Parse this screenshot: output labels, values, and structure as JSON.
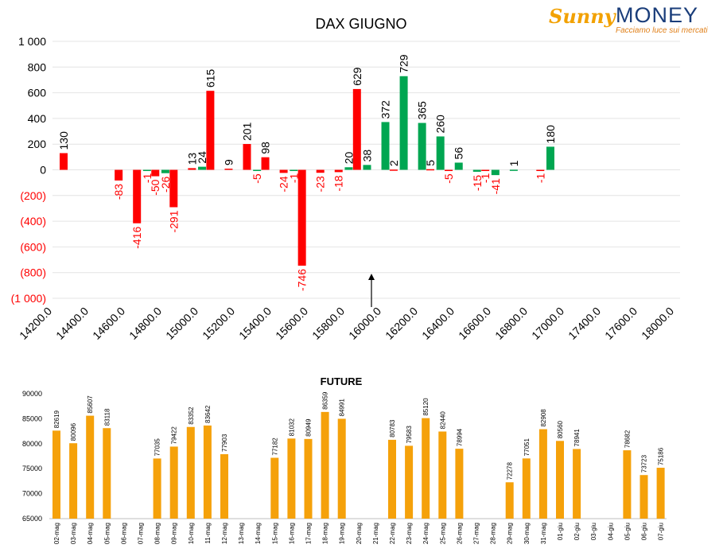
{
  "brand": {
    "name_part1": "Sunny",
    "name_part2": "MONEY",
    "tagline": "Facciamo luce sui mercati"
  },
  "colors": {
    "positive": "#00a651",
    "negative": "#ff0000",
    "future": "#f5a10a",
    "grid": "#e4e4e4",
    "axis_text": "#000000"
  },
  "chart_data": [
    {
      "type": "bar",
      "title": "DAX GIUGNO",
      "categories": [
        "14200.0",
        "14250.0",
        "14300.0",
        "14350.0",
        "14400.0",
        "14450.0",
        "14500.0",
        "14550.0",
        "14600.0",
        "14650.0",
        "14700.0",
        "14750.0",
        "14800.0",
        "14850.0",
        "14900.0",
        "14950.0",
        "15000.0",
        "15050.0",
        "15100.0",
        "15150.0",
        "15200.0",
        "15250.0",
        "15300.0",
        "15350.0",
        "15400.0",
        "15450.0",
        "15500.0",
        "15550.0",
        "15600.0",
        "15650.0",
        "15700.0",
        "15750.0",
        "15800.0",
        "15850.0",
        "15900.0",
        "15950.0",
        "16000.0",
        "16050.0",
        "16100.0",
        "16150.0",
        "16200.0",
        "16250.0",
        "16300.0",
        "16350.0",
        "16400.0",
        "16450.0",
        "16500.0",
        "16550.0",
        "16600.0",
        "16650.0",
        "16700.0",
        "16750.0",
        "16800.0",
        "16850.0",
        "16900.0",
        "16950.0",
        "17000.0",
        "17200.0",
        "17400.0",
        "17600.0",
        "17800.0",
        "18000.0"
      ],
      "tick_labels": [
        "14200.0",
        "14400.0",
        "14600.0",
        "14800.0",
        "15000.0",
        "15200.0",
        "15400.0",
        "15600.0",
        "15800.0",
        "16000.0",
        "16200.0",
        "16400.0",
        "16600.0",
        "16800.0",
        "17000.0",
        "17400.0",
        "17600.0",
        "18000.0"
      ],
      "tick_indices": [
        0,
        4,
        8,
        12,
        16,
        20,
        24,
        28,
        32,
        36,
        40,
        44,
        48,
        52,
        56,
        58,
        59,
        61
      ],
      "series": [
        {
          "name": "",
          "color_key": "negative",
          "values": [
            130,
            null,
            null,
            null,
            null,
            null,
            -83,
            -416,
            -50,
            -291,
            13,
            615,
            9,
            201,
            -5,
            98,
            -24,
            -746,
            -23,
            -18,
            629,
            2,
            null,
            5,
            -5,
            null,
            -15,
            null,
            null,
            -1,
            null,
            null,
            null,
            null,
            null,
            null,
            null,
            null,
            null,
            null,
            null,
            null,
            null,
            null,
            null,
            null,
            null,
            null,
            null,
            null,
            null,
            null,
            null,
            null,
            null,
            null,
            null,
            null,
            null,
            null,
            null,
            null
          ],
          "note_categories": [
            0,
            6,
            7,
            8,
            9,
            10,
            11,
            12,
            13,
            14,
            15,
            16,
            17,
            18,
            19,
            20,
            21,
            23,
            24,
            26,
            27,
            29
          ]
        }
      ],
      "bars": [
        {
          "i": 0,
          "v": 130,
          "c": "negative"
        },
        {
          "i": 3,
          "v": -83,
          "c": "negative"
        },
        {
          "i": 4,
          "v": -416,
          "c": "negative"
        },
        {
          "i": 4.55,
          "v": -1,
          "c": "positive",
          "hide": true
        },
        {
          "i": 5,
          "v": -50,
          "c": "negative"
        },
        {
          "i": 5.55,
          "v": -26,
          "c": "positive"
        },
        {
          "i": 6,
          "v": -291,
          "c": "negative"
        },
        {
          "i": 7,
          "v": 13,
          "c": "negative"
        },
        {
          "i": 7.55,
          "v": 24,
          "c": "positive"
        },
        {
          "i": 8,
          "v": 615,
          "c": "negative"
        },
        {
          "i": 9,
          "v": 9,
          "c": "negative"
        },
        {
          "i": 10,
          "v": 201,
          "c": "negative"
        },
        {
          "i": 10.55,
          "v": -5,
          "c": "positive"
        },
        {
          "i": 11,
          "v": 98,
          "c": "negative"
        },
        {
          "i": 12,
          "v": -24,
          "c": "negative"
        },
        {
          "i": 12.55,
          "v": -1,
          "c": "positive"
        },
        {
          "i": 13,
          "v": -746,
          "c": "negative"
        },
        {
          "i": 14,
          "v": -23,
          "c": "negative"
        },
        {
          "i": 15,
          "v": -18,
          "c": "negative"
        },
        {
          "i": 15.55,
          "v": 20,
          "c": "positive"
        },
        {
          "i": 16,
          "v": 629,
          "c": "negative"
        },
        {
          "i": 16.55,
          "v": 38,
          "c": "positive"
        },
        {
          "i": 17.55,
          "v": 372,
          "c": "positive"
        },
        {
          "i": 18,
          "v": 2,
          "c": "negative"
        },
        {
          "i": 18.55,
          "v": 729,
          "c": "positive"
        },
        {
          "i": 19.55,
          "v": 365,
          "c": "positive"
        },
        {
          "i": 20,
          "v": 5,
          "c": "negative"
        },
        {
          "i": 20.55,
          "v": 260,
          "c": "positive"
        },
        {
          "i": 21,
          "v": -5,
          "c": "negative"
        },
        {
          "i": 21.55,
          "v": 56,
          "c": "positive"
        },
        {
          "i": 22.55,
          "v": -15,
          "c": "positive"
        },
        {
          "i": 23,
          "v": -1,
          "c": "negative"
        },
        {
          "i": 23.55,
          "v": -41,
          "c": "positive"
        },
        {
          "i": 24.55,
          "v": 1,
          "c": "positive"
        },
        {
          "i": 26,
          "v": -1,
          "c": "negative"
        },
        {
          "i": 26.55,
          "v": 180,
          "c": "positive"
        }
      ],
      "ylim": [
        -1000,
        1000
      ],
      "yticks": [
        -1000,
        -800,
        -600,
        -400,
        -200,
        0,
        200,
        400,
        600,
        800,
        1000
      ],
      "ytick_labels": [
        "(1 000)",
        "(800)",
        "(600)",
        "(400)",
        "(200)",
        "0",
        "200",
        "400",
        "600",
        "800",
        "1 000"
      ],
      "grid": true,
      "legend": "none",
      "annotation": "arrow at 16000.0"
    },
    {
      "type": "bar",
      "title": "FUTURE",
      "categories": [
        "02-mag",
        "03-mag",
        "04-mag",
        "05-mag",
        "06-mag",
        "07-mag",
        "08-mag",
        "09-mag",
        "10-mag",
        "11-mag",
        "12-mag",
        "13-mag",
        "14-mag",
        "15-mag",
        "16-mag",
        "17-mag",
        "18-mag",
        "19-mag",
        "20-mag",
        "21-mag",
        "22-mag",
        "23-mag",
        "24-mag",
        "25-mag",
        "26-mag",
        "27-mag",
        "28-mag",
        "29-mag",
        "30-mag",
        "31-mag",
        "01-giu",
        "02-giu",
        "03-giu",
        "04-giu",
        "05-giu",
        "06-giu",
        "07-giu"
      ],
      "values": [
        82619,
        80096,
        85607,
        83118,
        null,
        null,
        77035,
        79422,
        83352,
        83642,
        77903,
        null,
        null,
        77182,
        81032,
        80949,
        86359,
        84991,
        null,
        null,
        80783,
        79583,
        85120,
        82440,
        78994,
        null,
        null,
        72278,
        77051,
        82908,
        80560,
        78941,
        null,
        null,
        78682,
        73723,
        75186
      ],
      "ylim": [
        65000,
        90000
      ],
      "yticks": [
        65000,
        70000,
        75000,
        80000,
        85000,
        90000
      ],
      "grid": false,
      "legend": "none"
    }
  ]
}
